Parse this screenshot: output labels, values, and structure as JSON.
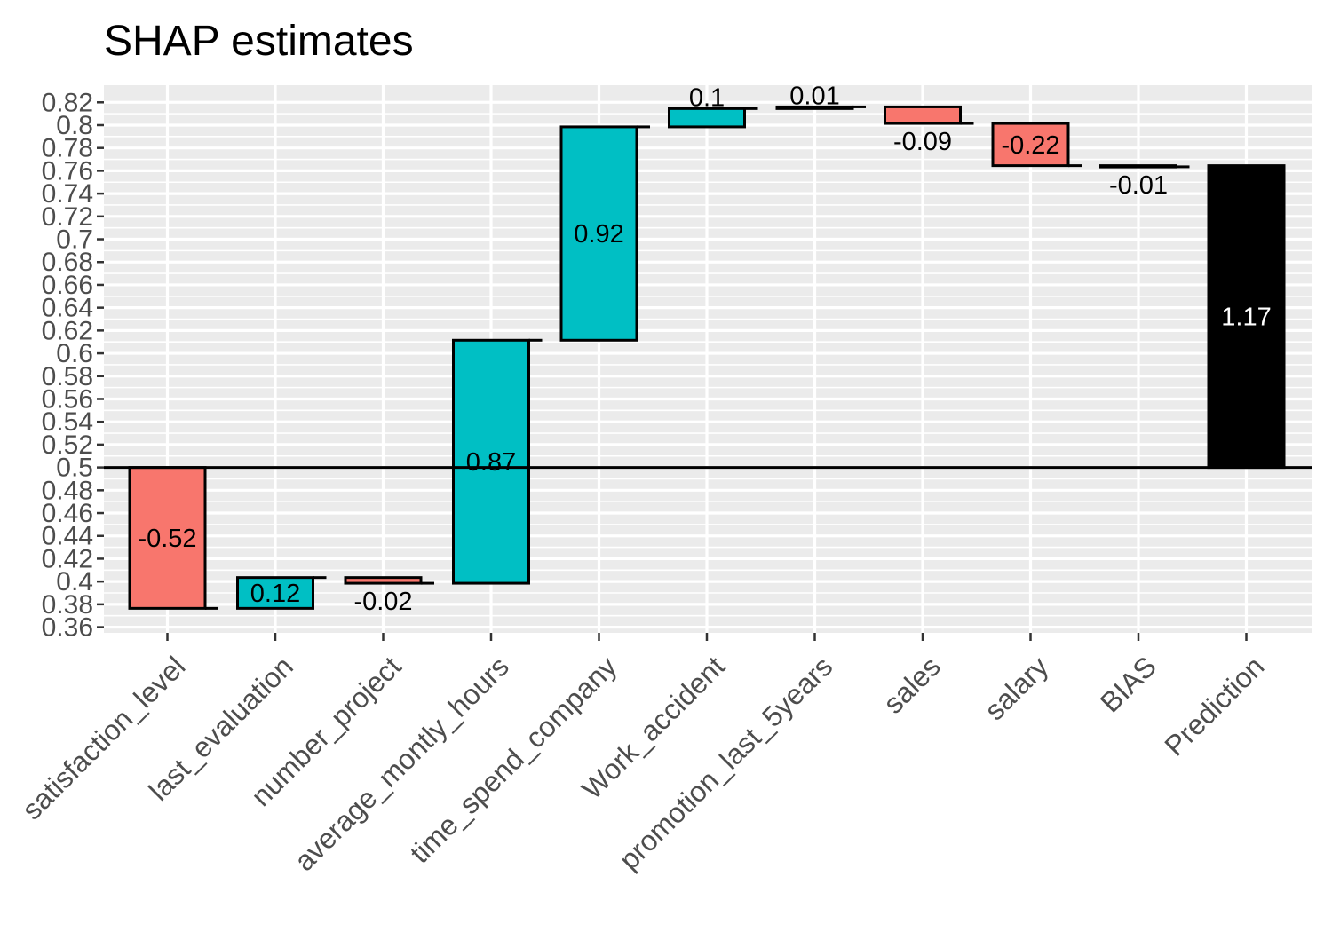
{
  "chart_data": {
    "type": "bar",
    "subtype": "waterfall",
    "title": "SHAP estimates",
    "xlabel": "",
    "ylabel": "",
    "ylim": [
      0.355,
      0.835
    ],
    "baseline": 0.5,
    "y_ticks": [
      "0.36",
      "0.38",
      "0.4",
      "0.42",
      "0.44",
      "0.46",
      "0.48",
      "0.5",
      "0.52",
      "0.54",
      "0.56",
      "0.58",
      "0.6",
      "0.62",
      "0.64",
      "0.66",
      "0.68",
      "0.7",
      "0.72",
      "0.74",
      "0.76",
      "0.78",
      "0.8",
      "0.82"
    ],
    "categories": [
      "satisfaction_level",
      "last_evaluation",
      "number_project",
      "average_montly_hours",
      "time_spend_company",
      "Work_accident",
      "promotion_last_5years",
      "sales",
      "salary",
      "BIAS",
      "Prediction"
    ],
    "bars": [
      {
        "start": 0.5,
        "end": 0.3765,
        "label": "-0.52",
        "sign": "negative"
      },
      {
        "start": 0.3765,
        "end": 0.4035,
        "label": "0.12",
        "sign": "positive"
      },
      {
        "start": 0.4035,
        "end": 0.3985,
        "label": "-0.02",
        "sign": "negative"
      },
      {
        "start": 0.3985,
        "end": 0.6115,
        "label": "0.87",
        "sign": "positive"
      },
      {
        "start": 0.6115,
        "end": 0.7985,
        "label": "0.92",
        "sign": "positive"
      },
      {
        "start": 0.7985,
        "end": 0.8145,
        "label": "0.1",
        "sign": "positive"
      },
      {
        "start": 0.8145,
        "end": 0.816,
        "label": "0.01",
        "sign": "positive"
      },
      {
        "start": 0.816,
        "end": 0.8015,
        "label": "-0.09",
        "sign": "negative"
      },
      {
        "start": 0.8015,
        "end": 0.7645,
        "label": "-0.22",
        "sign": "negative"
      },
      {
        "start": 0.7645,
        "end": 0.7635,
        "label": "-0.01",
        "sign": "negative"
      },
      {
        "start": 0.5,
        "end": 0.7645,
        "label": "1.17",
        "sign": "total"
      }
    ],
    "colors": {
      "positive": "#00BFC4",
      "negative": "#F8766D",
      "total": "#000000",
      "panel": "#EBEBEB",
      "grid": "#FFFFFF"
    },
    "grid": true,
    "legend": "none"
  }
}
